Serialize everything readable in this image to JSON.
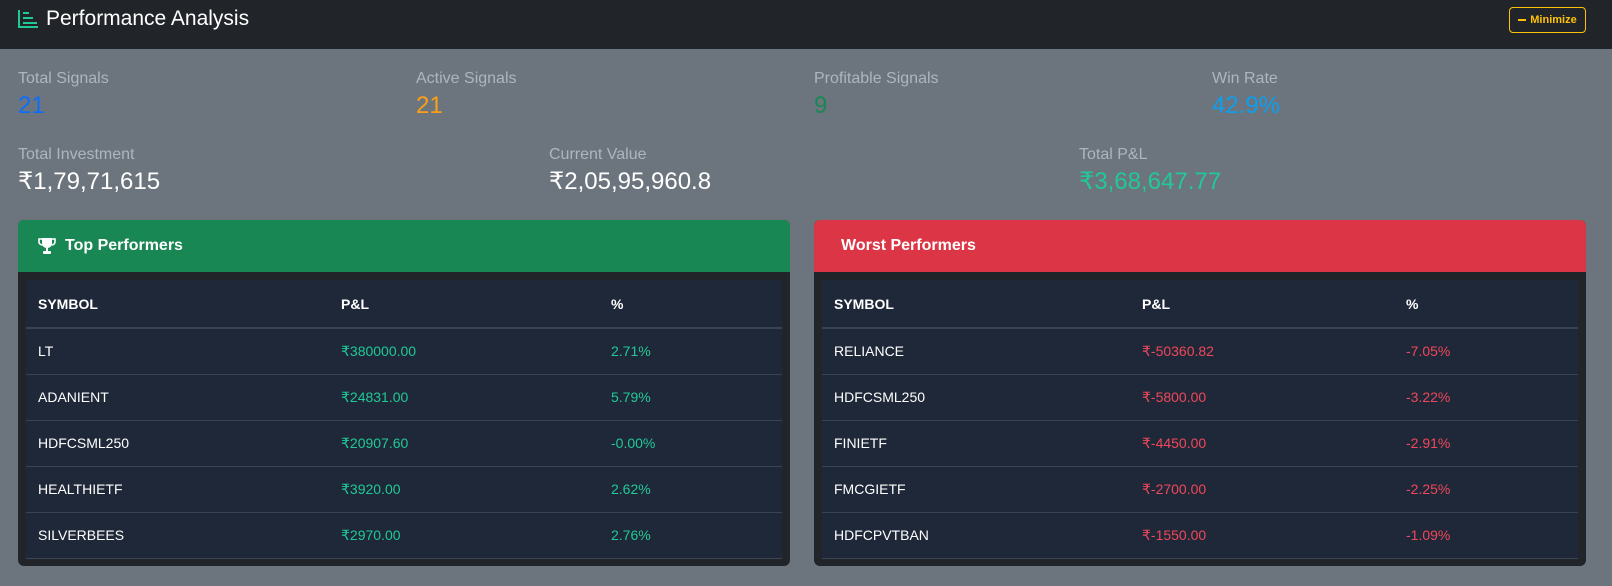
{
  "header": {
    "title": "Performance Analysis",
    "minimize_label": "Minimize"
  },
  "stats": {
    "total_signals": {
      "label": "Total Signals",
      "value": "21",
      "color": "#0d6efd"
    },
    "active_signals": {
      "label": "Active Signals",
      "value": "21",
      "color": "#fd9f14"
    },
    "profitable_signals": {
      "label": "Profitable Signals",
      "value": "9",
      "color": "#198754"
    },
    "win_rate": {
      "label": "Win Rate",
      "value": "42.9%",
      "color": "#0d9ef0"
    },
    "total_investment": {
      "label": "Total Investment",
      "value": "₹1,79,71,615"
    },
    "current_value": {
      "label": "Current Value",
      "value": "₹2,05,95,960.8"
    },
    "total_pnl": {
      "label": "Total P&L",
      "value": "₹3,68,647.77",
      "color": "#20c997"
    }
  },
  "top_performers": {
    "title": "Top Performers",
    "columns": [
      "SYMBOL",
      "P&L",
      "%"
    ],
    "rows": [
      {
        "symbol": "LT",
        "pnl": "₹380000.00",
        "pct": "2.71%"
      },
      {
        "symbol": "ADANIENT",
        "pnl": "₹24831.00",
        "pct": "5.79%"
      },
      {
        "symbol": "HDFCSML250",
        "pnl": "₹20907.60",
        "pct": "-0.00%"
      },
      {
        "symbol": "HEALTHIETF",
        "pnl": "₹3920.00",
        "pct": "2.62%"
      },
      {
        "symbol": "SILVERBEES",
        "pnl": "₹2970.00",
        "pct": "2.76%"
      }
    ]
  },
  "worst_performers": {
    "title": "Worst Performers",
    "columns": [
      "SYMBOL",
      "P&L",
      "%"
    ],
    "rows": [
      {
        "symbol": "RELIANCE",
        "pnl": "₹-50360.82",
        "pct": "-7.05%"
      },
      {
        "symbol": "HDFCSML250",
        "pnl": "₹-5800.00",
        "pct": "-3.22%"
      },
      {
        "symbol": "FINIETF",
        "pnl": "₹-4450.00",
        "pct": "-2.91%"
      },
      {
        "symbol": "FMCGIETF",
        "pnl": "₹-2700.00",
        "pct": "-2.25%"
      },
      {
        "symbol": "HDFCPVTBAN",
        "pnl": "₹-1550.00",
        "pct": "-1.09%"
      }
    ]
  },
  "icons": {
    "header": "bar-chart-icon",
    "top": "trophy-icon",
    "minimize": "dash-icon"
  }
}
